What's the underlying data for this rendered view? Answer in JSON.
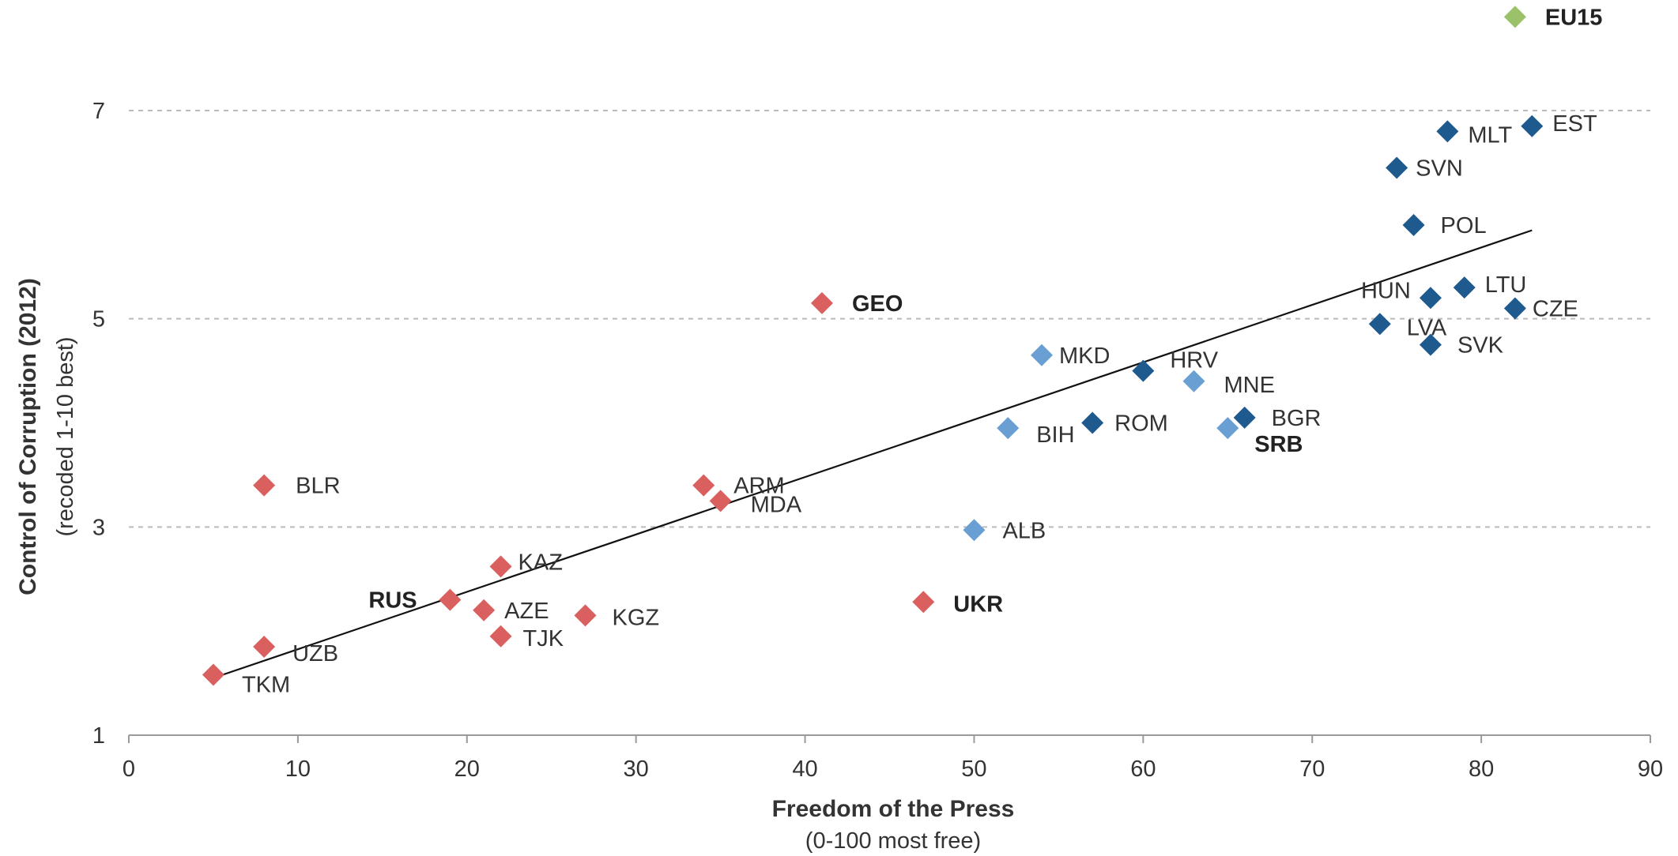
{
  "chart_data": {
    "type": "scatter",
    "xlabel": "Freedom of the Press",
    "xlabel_sub": "(0-100 most free)",
    "ylabel": "Control of Corruption (2012)",
    "ylabel_sub": "(recoded 1-10 best)",
    "xlim": [
      0,
      90
    ],
    "ylim": [
      1,
      7
    ],
    "x_ticks": [
      0,
      10,
      20,
      30,
      40,
      50,
      60,
      70,
      80,
      90
    ],
    "y_ticks": [
      1,
      3,
      5,
      7
    ],
    "grid": "horizontal dashed at y ticks",
    "colors": {
      "post_soviet": "#d9605e",
      "western_balkans": "#6a9fd4",
      "eu_members": "#1f5a8e",
      "eu15": "#9bc26a",
      "trend_line": "#111111"
    },
    "trend_line": {
      "x": [
        5,
        83
      ],
      "y": [
        1.55,
        5.85
      ]
    },
    "points": [
      {
        "label": "EU15",
        "x": 82,
        "y": 7.9,
        "group": "eu15",
        "bold": true
      },
      {
        "label": "EST",
        "x": 83,
        "y": 6.85,
        "group": "eu_members",
        "bold": false
      },
      {
        "label": "MLT",
        "x": 78,
        "y": 6.8,
        "group": "eu_members",
        "bold": false
      },
      {
        "label": "SVN",
        "x": 75,
        "y": 6.45,
        "group": "eu_members",
        "bold": false
      },
      {
        "label": "POL",
        "x": 76,
        "y": 5.9,
        "group": "eu_members",
        "bold": false
      },
      {
        "label": "LTU",
        "x": 79,
        "y": 5.3,
        "group": "eu_members",
        "bold": false
      },
      {
        "label": "HUN",
        "x": 77,
        "y": 5.2,
        "group": "eu_members",
        "bold": false
      },
      {
        "label": "CZE",
        "x": 82,
        "y": 5.1,
        "group": "eu_members",
        "bold": false
      },
      {
        "label": "LVA",
        "x": 74,
        "y": 4.95,
        "group": "eu_members",
        "bold": false
      },
      {
        "label": "SVK",
        "x": 77,
        "y": 4.75,
        "group": "eu_members",
        "bold": false
      },
      {
        "label": "HRV",
        "x": 60,
        "y": 4.5,
        "group": "eu_members",
        "bold": false
      },
      {
        "label": "BGR",
        "x": 66,
        "y": 4.05,
        "group": "eu_members",
        "bold": false
      },
      {
        "label": "ROM",
        "x": 57,
        "y": 4.0,
        "group": "eu_members",
        "bold": false
      },
      {
        "label": "MKD",
        "x": 54,
        "y": 4.65,
        "group": "western_balkans",
        "bold": false
      },
      {
        "label": "MNE",
        "x": 63,
        "y": 4.4,
        "group": "western_balkans",
        "bold": false
      },
      {
        "label": "BIH",
        "x": 52,
        "y": 3.95,
        "group": "western_balkans",
        "bold": false
      },
      {
        "label": "SRB",
        "x": 65,
        "y": 3.95,
        "group": "western_balkans",
        "bold": true
      },
      {
        "label": "ALB",
        "x": 50,
        "y": 2.97,
        "group": "western_balkans",
        "bold": false
      },
      {
        "label": "GEO",
        "x": 41,
        "y": 5.15,
        "group": "post_soviet",
        "bold": true
      },
      {
        "label": "ARM",
        "x": 34,
        "y": 3.4,
        "group": "post_soviet",
        "bold": false
      },
      {
        "label": "MDA",
        "x": 35,
        "y": 3.25,
        "group": "post_soviet",
        "bold": false
      },
      {
        "label": "BLR",
        "x": 8,
        "y": 3.4,
        "group": "post_soviet",
        "bold": false
      },
      {
        "label": "KAZ",
        "x": 22,
        "y": 2.62,
        "group": "post_soviet",
        "bold": false
      },
      {
        "label": "RUS",
        "x": 19,
        "y": 2.3,
        "group": "post_soviet",
        "bold": true
      },
      {
        "label": "AZE",
        "x": 21,
        "y": 2.2,
        "group": "post_soviet",
        "bold": false
      },
      {
        "label": "KGZ",
        "x": 27,
        "y": 2.15,
        "group": "post_soviet",
        "bold": false
      },
      {
        "label": "UKR",
        "x": 47,
        "y": 2.28,
        "group": "post_soviet",
        "bold": true
      },
      {
        "label": "TJK",
        "x": 22,
        "y": 1.95,
        "group": "post_soviet",
        "bold": false
      },
      {
        "label": "UZB",
        "x": 8,
        "y": 1.85,
        "group": "post_soviet",
        "bold": false
      },
      {
        "label": "TKM",
        "x": 5,
        "y": 1.58,
        "group": "post_soviet",
        "bold": false
      }
    ]
  }
}
